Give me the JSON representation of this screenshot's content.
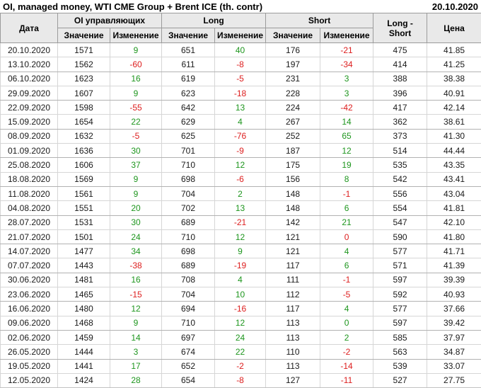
{
  "header": {
    "title": "OI, managed money, WTI CME Group + Brent ICE (th. contr)",
    "report_date": "20.10.2020"
  },
  "style_colors": {
    "positive_change": "#1e961e",
    "negative_change": "#dd1e1e",
    "header_background": "#e9e9e9",
    "header_border": "#9b9b9b",
    "grid_border": "#d6d6d6",
    "text": "#1a1a1a"
  },
  "chart_data": {
    "type": "table",
    "title": "OI, managed money, WTI CME Group + Brent ICE (th. contr)",
    "report_date": "20.10.2020",
    "column_groups": [
      "Дата",
      "OI управляющих",
      "Long",
      "Short",
      "Long - Short",
      "Цена"
    ],
    "sub_headers": [
      "Значение",
      "Изменение"
    ],
    "columns": [
      "Дата",
      "Значение",
      "Изменение",
      "Значение",
      "Изменение",
      "Значение",
      "Изменение",
      "Long - Short",
      "Цена"
    ],
    "change_color_legend": {
      "g": "green",
      "r": "red"
    },
    "rows": [
      [
        "20.10.2020",
        1571,
        [
          9,
          "g"
        ],
        651,
        [
          40,
          "g"
        ],
        176,
        [
          -21,
          "r"
        ],
        475,
        "41.85"
      ],
      [
        "13.10.2020",
        1562,
        [
          -60,
          "r"
        ],
        611,
        [
          -8,
          "r"
        ],
        197,
        [
          -34,
          "r"
        ],
        414,
        "41.25"
      ],
      [
        "06.10.2020",
        1623,
        [
          16,
          "g"
        ],
        619,
        [
          -5,
          "r"
        ],
        231,
        [
          3,
          "g"
        ],
        388,
        "38.38"
      ],
      [
        "29.09.2020",
        1607,
        [
          9,
          "g"
        ],
        623,
        [
          -18,
          "r"
        ],
        228,
        [
          3,
          "g"
        ],
        396,
        "40.91"
      ],
      [
        "22.09.2020",
        1598,
        [
          -55,
          "r"
        ],
        642,
        [
          13,
          "g"
        ],
        224,
        [
          -42,
          "r"
        ],
        417,
        "42.14"
      ],
      [
        "15.09.2020",
        1654,
        [
          22,
          "g"
        ],
        629,
        [
          4,
          "g"
        ],
        267,
        [
          14,
          "g"
        ],
        362,
        "38.61"
      ],
      [
        "08.09.2020",
        1632,
        [
          -5,
          "r"
        ],
        625,
        [
          -76,
          "r"
        ],
        252,
        [
          65,
          "g"
        ],
        373,
        "41.30"
      ],
      [
        "01.09.2020",
        1636,
        [
          30,
          "g"
        ],
        701,
        [
          -9,
          "r"
        ],
        187,
        [
          12,
          "g"
        ],
        514,
        "44.44"
      ],
      [
        "25.08.2020",
        1606,
        [
          37,
          "g"
        ],
        710,
        [
          12,
          "g"
        ],
        175,
        [
          19,
          "g"
        ],
        535,
        "43.35"
      ],
      [
        "18.08.2020",
        1569,
        [
          9,
          "g"
        ],
        698,
        [
          -6,
          "r"
        ],
        156,
        [
          8,
          "g"
        ],
        542,
        "43.41"
      ],
      [
        "11.08.2020",
        1561,
        [
          9,
          "g"
        ],
        704,
        [
          2,
          "g"
        ],
        148,
        [
          -1,
          "r"
        ],
        556,
        "43.04"
      ],
      [
        "04.08.2020",
        1551,
        [
          20,
          "g"
        ],
        702,
        [
          13,
          "g"
        ],
        148,
        [
          6,
          "g"
        ],
        554,
        "41.81"
      ],
      [
        "28.07.2020",
        1531,
        [
          30,
          "g"
        ],
        689,
        [
          -21,
          "r"
        ],
        142,
        [
          21,
          "g"
        ],
        547,
        "42.10"
      ],
      [
        "21.07.2020",
        1501,
        [
          24,
          "g"
        ],
        710,
        [
          12,
          "g"
        ],
        121,
        [
          0,
          "r"
        ],
        590,
        "41.80"
      ],
      [
        "14.07.2020",
        1477,
        [
          34,
          "g"
        ],
        698,
        [
          9,
          "g"
        ],
        121,
        [
          4,
          "g"
        ],
        577,
        "41.71"
      ],
      [
        "07.07.2020",
        1443,
        [
          -38,
          "r"
        ],
        689,
        [
          -19,
          "r"
        ],
        117,
        [
          6,
          "g"
        ],
        571,
        "41.39"
      ],
      [
        "30.06.2020",
        1481,
        [
          16,
          "g"
        ],
        708,
        [
          4,
          "g"
        ],
        111,
        [
          -1,
          "r"
        ],
        597,
        "39.39"
      ],
      [
        "23.06.2020",
        1465,
        [
          -15,
          "r"
        ],
        704,
        [
          10,
          "g"
        ],
        112,
        [
          -5,
          "r"
        ],
        592,
        "40.93"
      ],
      [
        "16.06.2020",
        1480,
        [
          12,
          "g"
        ],
        694,
        [
          -16,
          "r"
        ],
        117,
        [
          4,
          "g"
        ],
        577,
        "37.66"
      ],
      [
        "09.06.2020",
        1468,
        [
          9,
          "g"
        ],
        710,
        [
          12,
          "g"
        ],
        113,
        [
          0,
          "g"
        ],
        597,
        "39.42"
      ],
      [
        "02.06.2020",
        1459,
        [
          14,
          "g"
        ],
        697,
        [
          24,
          "g"
        ],
        113,
        [
          2,
          "g"
        ],
        585,
        "37.97"
      ],
      [
        "26.05.2020",
        1444,
        [
          3,
          "g"
        ],
        674,
        [
          22,
          "g"
        ],
        110,
        [
          -2,
          "r"
        ],
        563,
        "34.87"
      ],
      [
        "19.05.2020",
        1441,
        [
          17,
          "g"
        ],
        652,
        [
          -2,
          "r"
        ],
        113,
        [
          -14,
          "r"
        ],
        539,
        "33.07"
      ],
      [
        "12.05.2020",
        1424,
        [
          28,
          "g"
        ],
        654,
        [
          -8,
          "r"
        ],
        127,
        [
          -11,
          "r"
        ],
        527,
        "27.75"
      ]
    ]
  }
}
